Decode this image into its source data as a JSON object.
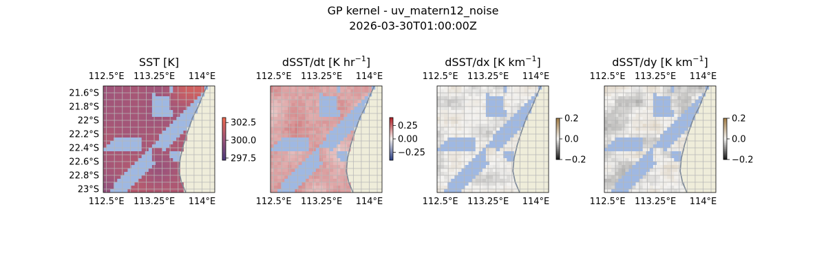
{
  "figure": {
    "title": "GP kernel - uv_matern12_noise",
    "subtitle": "2026-03-30T01:00:00Z"
  },
  "colors": {
    "land": "#efedda",
    "masked_water": "#9fb8e2",
    "coast": "#7b8796",
    "gridline": "#b7b7b7",
    "sst_low": "#4b3a7e",
    "sst_mid": "#a0557a",
    "sst_high": "#f2694e",
    "div_low": "#2a3f86",
    "div_mid": "#f7f4f1",
    "div_high": "#b11c24",
    "grad_low": "#141414",
    "grad_mid": "#f4f3f1",
    "grad_high": "#a17b43"
  },
  "chart_data": [
    {
      "type": "heatmap",
      "title_main": "SST [K]",
      "title_sup": "",
      "title_tail": "",
      "x_ticks": [
        "112.5°E",
        "113.25°E",
        "114°E"
      ],
      "x_tick_values": [
        112.5,
        113.25,
        114.0
      ],
      "y_ticks": [
        "21.6°S",
        "21.8°S",
        "22°S",
        "22.2°S",
        "22.4°S",
        "22.6°S",
        "22.8°S",
        "23°S"
      ],
      "y_tick_values": [
        -21.6,
        -21.8,
        -22.0,
        -22.2,
        -22.4,
        -22.6,
        -22.8,
        -23.0
      ],
      "xlim": [
        112.45,
        114.2
      ],
      "ylim": [
        -23.05,
        -21.5
      ],
      "colorbar": {
        "range": [
          297.2,
          303.2
        ],
        "ticks": [
          "302.5",
          "300.0",
          "297.5"
        ],
        "tick_values": [
          302.5,
          300.0,
          297.5
        ],
        "cmap": "sst"
      },
      "grid": true
    },
    {
      "type": "heatmap",
      "title_main": "dSST/dt [K hr",
      "title_sup": "−1",
      "title_tail": "]",
      "x_ticks": [
        "112.5°E",
        "113.25°E",
        "114°E"
      ],
      "x_tick_values": [
        112.5,
        113.25,
        114.0
      ],
      "y_ticks": [],
      "xlim": [
        112.45,
        114.2
      ],
      "ylim": [
        -23.05,
        -21.5
      ],
      "colorbar": {
        "range": [
          -0.4,
          0.4
        ],
        "ticks": [
          "0.25",
          "0.00",
          "−0.25"
        ],
        "tick_values": [
          0.25,
          0.0,
          -0.25
        ],
        "cmap": "div"
      },
      "grid": true
    },
    {
      "type": "heatmap",
      "title_main": "dSST/dx [K km",
      "title_sup": "−1",
      "title_tail": "]",
      "x_ticks": [
        "112.5°E",
        "113.25°E",
        "114°E"
      ],
      "x_tick_values": [
        112.5,
        113.25,
        114.0
      ],
      "y_ticks": [],
      "xlim": [
        112.45,
        114.2
      ],
      "ylim": [
        -23.05,
        -21.5
      ],
      "colorbar": {
        "range": [
          -0.2,
          0.2
        ],
        "ticks": [
          "0.2",
          "0.0",
          "−0.2"
        ],
        "tick_values": [
          0.2,
          0.0,
          -0.2
        ],
        "cmap": "grad"
      },
      "grid": true
    },
    {
      "type": "heatmap",
      "title_main": "dSST/dy [K km",
      "title_sup": "−1",
      "title_tail": "]",
      "x_ticks": [
        "112.5°E",
        "113.25°E",
        "114°E"
      ],
      "x_tick_values": [
        112.5,
        113.25,
        114.0
      ],
      "y_ticks": [],
      "xlim": [
        112.45,
        114.2
      ],
      "ylim": [
        -23.05,
        -21.5
      ],
      "colorbar": {
        "range": [
          -0.2,
          0.2
        ],
        "ticks": [
          "0.2",
          "0.0",
          "−0.2"
        ],
        "tick_values": [
          0.2,
          0.0,
          -0.2
        ],
        "cmap": "grad"
      },
      "grid": true
    }
  ]
}
